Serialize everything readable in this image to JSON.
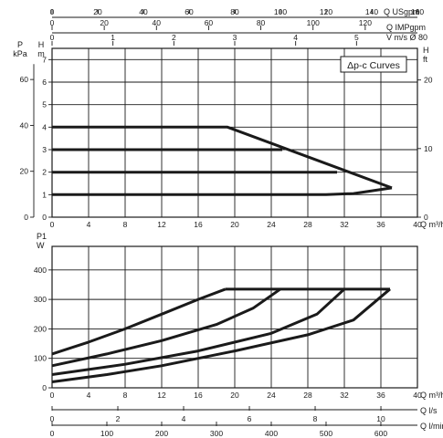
{
  "chart_data": [
    {
      "type": "line",
      "title": "Δp-c Curves",
      "top_axes": [
        {
          "label": "Q USgpm",
          "ticks": [
            "0",
            "20",
            "40",
            "60",
            "80",
            "100",
            "120",
            "140",
            "160"
          ],
          "max": 160
        },
        {
          "label": "Q IMPgpm",
          "ticks": [
            "0",
            "20",
            "40",
            "60",
            "80",
            "100",
            "120"
          ],
          "max": 140
        },
        {
          "label": "V m/s Ø 80",
          "ticks": [
            "0",
            "1",
            "2",
            "3",
            "4",
            "5"
          ],
          "max": 6
        }
      ],
      "xlabel": "Q m³/h",
      "x_ticks": [
        "0",
        "4",
        "8",
        "12",
        "16",
        "20",
        "24",
        "28",
        "32",
        "36",
        "40"
      ],
      "xlim": [
        0,
        40
      ],
      "ylabel_kpa": "P kPa",
      "kpa_ticks": [
        "0",
        "20",
        "40",
        "60"
      ],
      "ylabel_m": "H m",
      "m_ticks": [
        "0",
        "1",
        "2",
        "3",
        "4",
        "5",
        "6",
        "7"
      ],
      "ylabel_ft": "H ft",
      "ft_ticks": [
        "0",
        "10",
        "20"
      ],
      "ylim": [
        0,
        7.5
      ],
      "series": [
        {
          "x": [
            0,
            18.6,
            19.2,
            37.2
          ],
          "y": [
            4,
            4,
            4,
            1.3
          ]
        },
        {
          "x": [
            0,
            25.2
          ],
          "y": [
            3,
            3
          ]
        },
        {
          "x": [
            0,
            31.2
          ],
          "y": [
            2,
            2
          ]
        },
        {
          "x": [
            0,
            30,
            33,
            37.2
          ],
          "y": [
            1,
            1,
            1.05,
            1.3
          ]
        }
      ]
    },
    {
      "type": "line",
      "ylabel": "P1 W",
      "y_ticks": [
        "0",
        "100",
        "200",
        "300",
        "400"
      ],
      "ylim": [
        0,
        480
      ],
      "xlim": [
        0,
        40
      ],
      "bottom_axes": [
        {
          "label": "Q m³/h",
          "ticks": [
            "0",
            "4",
            "8",
            "12",
            "16",
            "20",
            "24",
            "28",
            "32",
            "36",
            "40"
          ],
          "max": 40
        },
        {
          "label": "Q l/s",
          "ticks": [
            "0",
            "2",
            "4",
            "6",
            "8",
            "10"
          ],
          "max": 11.11
        },
        {
          "label": "Q l/min",
          "ticks": [
            "0",
            "100",
            "200",
            "300",
            "400",
            "500",
            "600"
          ],
          "max": 666.7
        }
      ],
      "series": [
        {
          "x": [
            0,
            4,
            8,
            12,
            16,
            19
          ],
          "y": [
            115,
            155,
            200,
            250,
            300,
            335
          ]
        },
        {
          "x": [
            0,
            6,
            12,
            18,
            22,
            25
          ],
          "y": [
            75,
            115,
            160,
            215,
            270,
            335
          ]
        },
        {
          "x": [
            0,
            8,
            16,
            24,
            29,
            32
          ],
          "y": [
            45,
            80,
            125,
            185,
            250,
            335
          ]
        },
        {
          "x": [
            0,
            6,
            12,
            20,
            28,
            33,
            37
          ],
          "y": [
            20,
            45,
            75,
            125,
            180,
            230,
            335
          ]
        }
      ],
      "flat_top": {
        "x": [
          19,
          37
        ],
        "y": 335
      }
    }
  ]
}
